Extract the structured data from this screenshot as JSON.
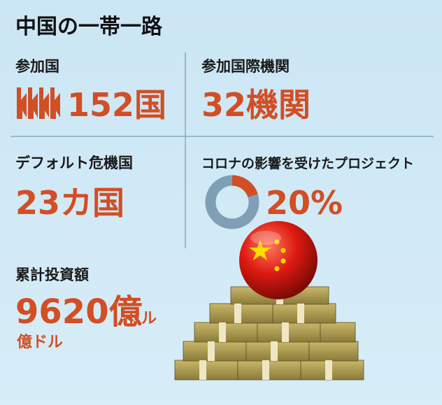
{
  "title": "中国の一帯一路",
  "panels": [
    {
      "label": "参加国",
      "value": "152国"
    },
    {
      "label": "参加国際機関",
      "value": "32機関"
    },
    {
      "label": "デフォルト危機国",
      "value": "23カ国"
    },
    {
      "label": "コロナの影響を受けたプロジェクト",
      "value": 20,
      "value_label": "20%"
    },
    {
      "label": "累計投資額",
      "value": "9620億",
      "unit": "ドル",
      "note": "億ドル"
    }
  ]
}
